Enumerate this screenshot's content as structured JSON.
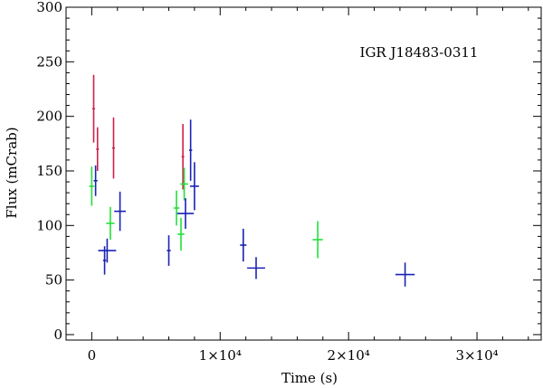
{
  "chart_data": {
    "type": "scatter",
    "title": "IGR J18483-0311",
    "xlabel": "Time (s)",
    "ylabel": "Flux (mCrab)",
    "xlim": [
      -2000,
      35000
    ],
    "ylim": [
      -5,
      300
    ],
    "x_ticks": [
      {
        "value": 0,
        "label": "0"
      },
      {
        "value": 10000,
        "label": "1×10⁴"
      },
      {
        "value": 20000,
        "label": "2×10⁴"
      },
      {
        "value": 30000,
        "label": "3×10⁴"
      }
    ],
    "y_ticks": [
      0,
      50,
      100,
      150,
      200,
      250,
      300
    ],
    "grid": false,
    "series": [
      {
        "color": "#d0204a",
        "points": [
          {
            "x": 150,
            "y": 207,
            "xerr": 60,
            "yerr": 31
          },
          {
            "x": 450,
            "y": 170,
            "xerr": 60,
            "yerr": 20
          },
          {
            "x": 1700,
            "y": 171,
            "xerr": 60,
            "yerr": 28
          },
          {
            "x": 7100,
            "y": 163,
            "xerr": 60,
            "yerr": 30
          }
        ]
      },
      {
        "color": "#22e03a",
        "points": [
          {
            "x": 0,
            "y": 136,
            "xerr": 200,
            "yerr": 18
          },
          {
            "x": 1450,
            "y": 102,
            "xerr": 320,
            "yerr": 15
          },
          {
            "x": 6600,
            "y": 116,
            "xerr": 220,
            "yerr": 16
          },
          {
            "x": 6950,
            "y": 92,
            "xerr": 260,
            "yerr": 15
          },
          {
            "x": 7200,
            "y": 138,
            "xerr": 300,
            "yerr": 15
          },
          {
            "x": 17600,
            "y": 87,
            "xerr": 400,
            "yerr": 17
          }
        ]
      },
      {
        "color": "#1a22b4",
        "points": [
          {
            "x": 300,
            "y": 141,
            "xerr": 150,
            "yerr": 14
          },
          {
            "x": 1200,
            "y": 77,
            "xerr": 700,
            "yerr": 11
          },
          {
            "x": 1000,
            "y": 68,
            "xerr": 120,
            "yerr": 13
          },
          {
            "x": 2200,
            "y": 113,
            "xerr": 450,
            "yerr": 18
          },
          {
            "x": 6000,
            "y": 77,
            "xerr": 150,
            "yerr": 14
          },
          {
            "x": 7300,
            "y": 111,
            "xerr": 650,
            "yerr": 14
          },
          {
            "x": 7700,
            "y": 169,
            "xerr": 120,
            "yerr": 28
          },
          {
            "x": 8000,
            "y": 136,
            "xerr": 350,
            "yerr": 22
          },
          {
            "x": 11800,
            "y": 82,
            "xerr": 250,
            "yerr": 15
          },
          {
            "x": 12800,
            "y": 61,
            "xerr": 700,
            "yerr": 10
          },
          {
            "x": 24400,
            "y": 55,
            "xerr": 750,
            "yerr": 11
          }
        ]
      }
    ]
  }
}
